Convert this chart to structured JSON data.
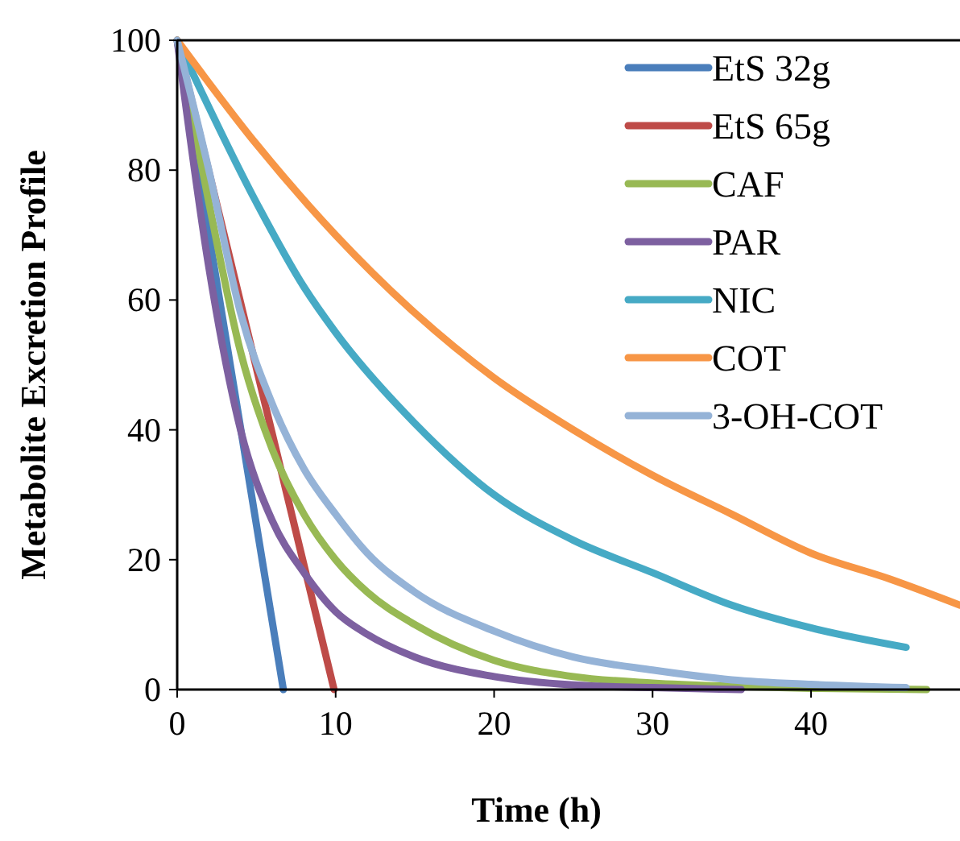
{
  "chart_data": {
    "type": "line",
    "xlabel": "Time (h)",
    "ylabel": "Metabolite Excretion Profile",
    "xlim": [
      0,
      49.4
    ],
    "ylim": [
      0,
      100
    ],
    "xticks": [
      0,
      10,
      20,
      30,
      40
    ],
    "yticks": [
      0,
      20,
      40,
      60,
      80,
      100
    ],
    "grid": false,
    "legend": "top right",
    "marker": "none",
    "line_style": "solid",
    "series": [
      {
        "name": "EtS 32g",
        "color": "#4a7ebb",
        "x": [
          0,
          6.7
        ],
        "values": [
          100,
          0
        ]
      },
      {
        "name": "EtS 65g",
        "color": "#be4b48",
        "x": [
          0,
          9.9
        ],
        "values": [
          100,
          0
        ]
      },
      {
        "name": "CAF",
        "color": "#98b954",
        "x": [
          0,
          2,
          4,
          6,
          8,
          10,
          12,
          15,
          20,
          25,
          30,
          35,
          40,
          47.3
        ],
        "values": [
          100,
          75,
          52,
          37,
          27,
          20,
          15,
          10,
          4.5,
          2,
          1,
          0.5,
          0.2,
          0
        ]
      },
      {
        "name": "PAR",
        "color": "#7d60a0",
        "x": [
          0,
          2,
          4,
          6,
          8,
          10,
          12,
          15,
          20,
          25,
          30,
          35.6
        ],
        "values": [
          100,
          65,
          40,
          26,
          18,
          12,
          8.5,
          5,
          2,
          0.7,
          0.3,
          0
        ]
      },
      {
        "name": "NIC",
        "color": "#46aac5",
        "x": [
          0,
          5,
          8,
          10,
          15,
          20,
          25,
          30,
          35,
          40,
          46
        ],
        "values": [
          100,
          75,
          62,
          55,
          41,
          30,
          23,
          18,
          13,
          9.5,
          6.5
        ]
      },
      {
        "name": "COT",
        "color": "#f79646",
        "x": [
          0,
          5,
          10,
          15,
          20,
          25,
          30,
          35,
          40,
          45,
          49.4
        ],
        "values": [
          100,
          84,
          70,
          58,
          48,
          40,
          33,
          27,
          21,
          17,
          13
        ]
      },
      {
        "name": "3-OH-COT",
        "color": "#95b3d7",
        "x": [
          0,
          2,
          4,
          6,
          8,
          10,
          12,
          15,
          20,
          25,
          30,
          35,
          40,
          46
        ],
        "values": [
          100,
          80,
          58,
          44,
          34,
          27,
          21,
          15,
          9,
          5,
          3,
          1.5,
          0.8,
          0.3
        ]
      }
    ]
  }
}
